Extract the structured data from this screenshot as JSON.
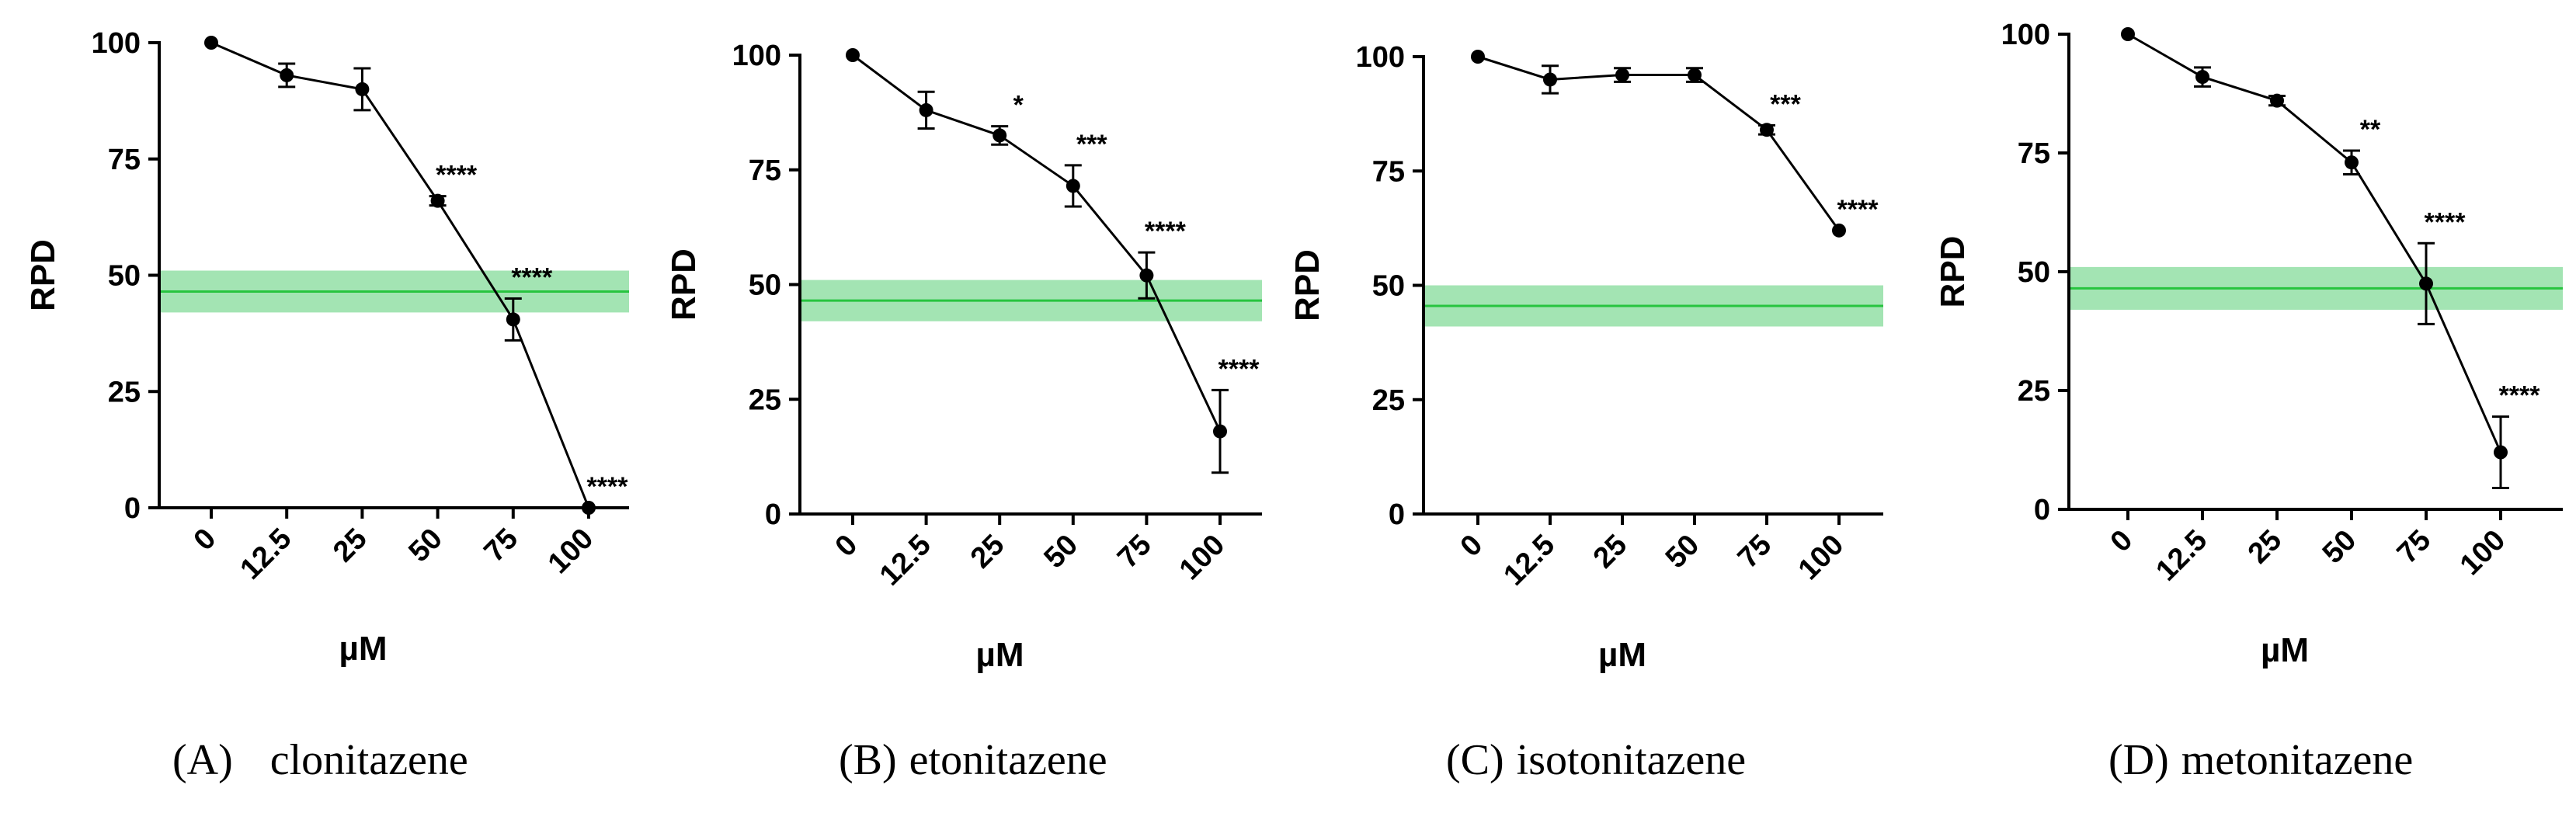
{
  "colors": {
    "line": "#000000",
    "band": "#a3e4b3",
    "mean_line": "#27c43f"
  },
  "chart_data": [
    {
      "type": "line",
      "panel": "(A)",
      "caption": "clonitazene",
      "xlabel": "µM",
      "ylabel": "RPD",
      "categories": [
        "0",
        "12.5",
        "25",
        "50",
        "75",
        "100"
      ],
      "values": [
        100,
        93,
        90,
        66,
        40.5,
        0
      ],
      "errors": [
        0,
        2.5,
        4.5,
        1,
        4.5,
        0
      ],
      "significance": [
        "",
        "",
        "",
        "****",
        "****",
        "****"
      ],
      "ylim": [
        0,
        100
      ],
      "yticks": [
        "0",
        "25",
        "50",
        "75",
        "100"
      ],
      "reference_band": {
        "mean": 46.5,
        "low": 42,
        "high": 51
      }
    },
    {
      "type": "line",
      "panel": "(B)",
      "caption": "etonitazene",
      "xlabel": "µM",
      "ylabel": "RPD",
      "categories": [
        "0",
        "12.5",
        "25",
        "50",
        "75",
        "100"
      ],
      "values": [
        100,
        88,
        82.5,
        71.5,
        52,
        18
      ],
      "errors": [
        0,
        4,
        2,
        4.5,
        5,
        9
      ],
      "significance": [
        "",
        "",
        "*",
        "***",
        "****",
        "****"
      ],
      "ylim": [
        0,
        100
      ],
      "yticks": [
        "0",
        "25",
        "50",
        "75",
        "100"
      ],
      "reference_band": {
        "mean": 46.5,
        "low": 42,
        "high": 51
      }
    },
    {
      "type": "line",
      "panel": "(C)",
      "caption": "isotonitazene",
      "xlabel": "µM",
      "ylabel": "RPD",
      "categories": [
        "0",
        "12.5",
        "25",
        "50",
        "75",
        "100"
      ],
      "values": [
        100,
        95,
        96,
        96,
        84,
        62
      ],
      "errors": [
        0,
        3,
        1.5,
        1.5,
        1,
        0
      ],
      "significance": [
        "",
        "",
        "",
        "",
        "***",
        "****"
      ],
      "ylim": [
        0,
        100
      ],
      "yticks": [
        "0",
        "25",
        "50",
        "75",
        "100"
      ],
      "reference_band": {
        "mean": 45.5,
        "low": 41,
        "high": 50
      }
    },
    {
      "type": "line",
      "panel": "(D)",
      "caption": "metonitazene",
      "xlabel": "µM",
      "ylabel": "RPD",
      "categories": [
        "0",
        "12.5",
        "25",
        "50",
        "75",
        "100"
      ],
      "values": [
        100,
        91,
        86,
        73,
        47.5,
        12
      ],
      "errors": [
        0,
        2,
        1,
        2.5,
        8.5,
        7.5
      ],
      "significance": [
        "",
        "",
        "",
        "**",
        "****",
        "****"
      ],
      "ylim": [
        0,
        100
      ],
      "yticks": [
        "0",
        "25",
        "50",
        "75",
        "100"
      ],
      "reference_band": {
        "mean": 46.5,
        "low": 42,
        "high": 51
      }
    }
  ]
}
